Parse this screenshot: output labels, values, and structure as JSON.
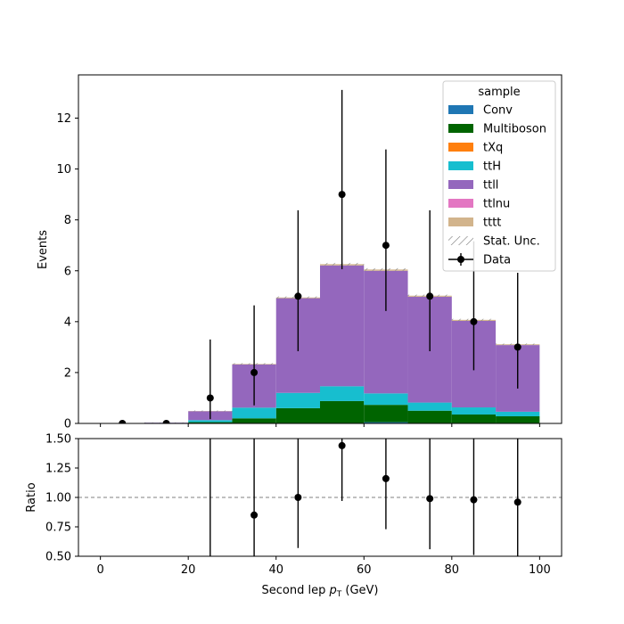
{
  "chart_data": [
    {
      "type": "bar",
      "panel": "main",
      "ylabel": "Events",
      "xlim": [
        -5,
        105
      ],
      "ylim": [
        0,
        13.7
      ],
      "yticks": [
        0,
        2,
        4,
        6,
        8,
        10,
        12
      ],
      "xticks": [
        0,
        20,
        40,
        60,
        80,
        100
      ],
      "bin_edges": [
        0,
        10,
        20,
        30,
        40,
        50,
        60,
        70,
        80,
        90,
        100
      ],
      "legend": {
        "title": "sample",
        "placement": "top-right",
        "entries": [
          "Conv",
          "Multiboson",
          "tXq",
          "ttH",
          "ttll",
          "ttlnu",
          "tttt",
          "Stat. Unc.",
          "Data"
        ]
      },
      "colors": {
        "Conv": "#1f77b4",
        "Multiboson": "#006400",
        "tXq": "#ff7f0e",
        "ttH": "#17becf",
        "ttll": "#9467bd",
        "ttlnu": "#e377c2",
        "tttt": "#d2b48c",
        "Data": "#000000"
      },
      "series": [
        {
          "name": "Conv",
          "values": [
            0,
            0,
            0,
            0,
            0,
            0,
            0.05,
            0,
            0,
            0
          ]
        },
        {
          "name": "Multiboson",
          "values": [
            0,
            0,
            0.05,
            0.2,
            0.6,
            0.88,
            0.68,
            0.5,
            0.35,
            0.28
          ]
        },
        {
          "name": "tXq",
          "values": [
            0,
            0,
            0,
            0,
            0,
            0,
            0,
            0,
            0,
            0
          ]
        },
        {
          "name": "ttH",
          "values": [
            0,
            0.02,
            0.08,
            0.42,
            0.6,
            0.58,
            0.45,
            0.32,
            0.28,
            0.18
          ]
        },
        {
          "name": "ttll",
          "values": [
            0,
            0.01,
            0.35,
            1.7,
            3.72,
            4.75,
            4.82,
            4.16,
            3.4,
            2.62
          ]
        },
        {
          "name": "ttlnu",
          "values": [
            0,
            0,
            0,
            0,
            0,
            0,
            0,
            0,
            0,
            0
          ]
        },
        {
          "name": "tttt",
          "values": [
            0,
            0,
            0.01,
            0.02,
            0.03,
            0.05,
            0.05,
            0.04,
            0.04,
            0.03
          ]
        }
      ],
      "stat_unc": [
        0,
        0.01,
        0.02,
        0.03,
        0.04,
        0.05,
        0.05,
        0.04,
        0.04,
        0.03
      ],
      "data": {
        "name": "Data",
        "x": [
          5,
          15,
          25,
          35,
          45,
          55,
          65,
          75,
          85,
          95
        ],
        "y": [
          0,
          0,
          1,
          2,
          5,
          9,
          7,
          5,
          4,
          3
        ],
        "err_low": [
          0,
          0,
          0.83,
          1.29,
          2.16,
          2.94,
          2.58,
          2.16,
          1.91,
          1.63
        ],
        "err_high": [
          0,
          0,
          2.3,
          2.64,
          3.38,
          4.11,
          3.77,
          3.38,
          3.16,
          2.92
        ]
      }
    },
    {
      "type": "scatter",
      "panel": "ratio",
      "xlabel": "Second lep p_T (GeV)",
      "ylabel": "Ratio",
      "xlim": [
        -5,
        105
      ],
      "ylim": [
        0.5,
        1.5
      ],
      "yticks": [
        0.5,
        0.75,
        1.0,
        1.25,
        1.5
      ],
      "reference_line": 1.0,
      "x": [
        25,
        35,
        45,
        55,
        65,
        75,
        85,
        95
      ],
      "y": [
        null,
        0.85,
        1.0,
        1.44,
        1.16,
        0.99,
        0.98,
        0.96
      ],
      "err_low": [
        1.0,
        0.55,
        0.43,
        0.47,
        0.43,
        0.43,
        0.47,
        0.52
      ],
      "err_high": [
        1.0,
        1.0,
        1.0,
        0.47,
        0.43,
        0.67,
        0.78,
        0.94
      ]
    }
  ],
  "labels": {
    "xlabel_main": "Second lep ",
    "xlabel_sym": "p",
    "xlabel_sub": "T",
    "xlabel_unit": " (GeV)"
  }
}
